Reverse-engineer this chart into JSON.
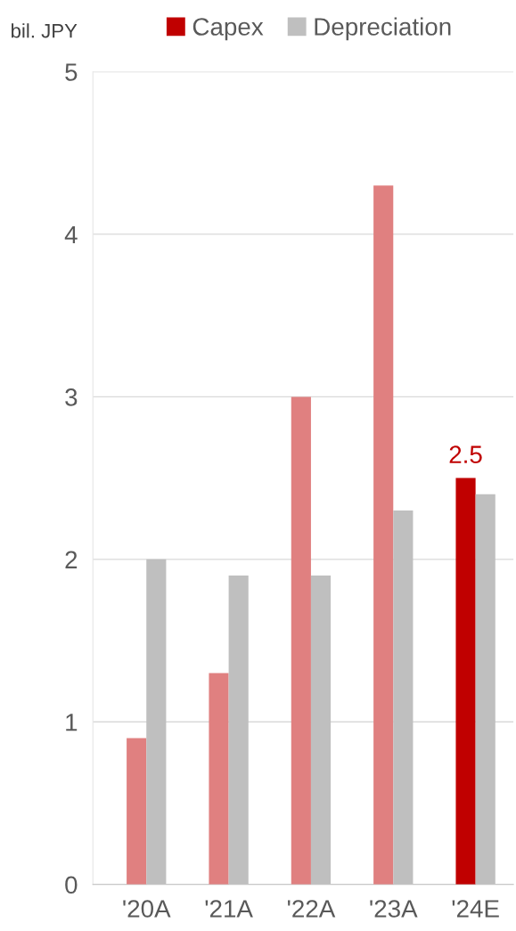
{
  "chart_data": {
    "type": "bar",
    "ylabel": "bil. JPY",
    "categories": [
      "'20A",
      "'21A",
      "'22A",
      "'23A",
      "'24E"
    ],
    "series": [
      {
        "name": "Capex",
        "color": "#c00000",
        "colors": [
          "#e08080",
          "#e08080",
          "#e08080",
          "#e08080",
          "#c00000"
        ],
        "values": [
          0.9,
          1.3,
          3.0,
          4.3,
          2.5
        ],
        "value_labels": [
          null,
          null,
          null,
          null,
          "2.5"
        ]
      },
      {
        "name": "Depreciation",
        "color": "#bfbfbf",
        "values": [
          2.0,
          1.9,
          1.9,
          2.3,
          2.4
        ]
      }
    ],
    "ylim": [
      0,
      5
    ],
    "yticks": [
      0,
      1,
      2,
      3,
      4,
      5
    ],
    "grid": "y",
    "legend": "top"
  }
}
